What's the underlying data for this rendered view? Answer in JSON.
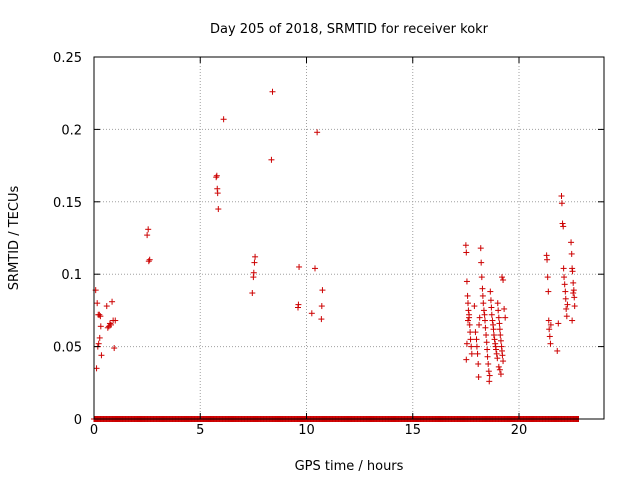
{
  "chart_data": {
    "type": "scatter",
    "title": "Day 205 of 2018, SRMTID for receiver kokr",
    "xlabel": "GPS time / hours",
    "ylabel": "SRMTID / TECUs",
    "xlim": [
      0,
      24
    ],
    "ylim": [
      0,
      0.25
    ],
    "xticks": [
      0,
      5,
      10,
      15,
      20
    ],
    "xtick_labels": [
      "0",
      "5",
      "10",
      "15",
      "20"
    ],
    "yticks": [
      0,
      0.05,
      0.1,
      0.15,
      0.2,
      0.25
    ],
    "ytick_labels": [
      "0",
      "0.05",
      "0.1",
      "0.15",
      "0.2",
      "0.25"
    ],
    "grid": true,
    "marker": "plus",
    "colors": {
      "series": "#cc0000",
      "grid": "#a0a0a0",
      "axis": "#000000"
    },
    "baseline": {
      "y": 0,
      "x_range": [
        0,
        22.8
      ],
      "note_count": 640
    },
    "series": [
      {
        "values": [
          [
            0.08,
            0.089
          ],
          [
            0.12,
            0.035
          ],
          [
            0.15,
            0.08
          ],
          [
            0.18,
            0.05
          ],
          [
            0.2,
            0.072
          ],
          [
            0.22,
            0.052
          ],
          [
            0.25,
            0.072
          ],
          [
            0.27,
            0.056
          ],
          [
            0.3,
            0.071
          ],
          [
            0.32,
            0.064
          ],
          [
            0.35,
            0.044
          ],
          [
            0.6,
            0.078
          ],
          [
            0.65,
            0.063
          ],
          [
            0.7,
            0.064
          ],
          [
            0.75,
            0.066
          ],
          [
            0.8,
            0.065
          ],
          [
            0.85,
            0.081
          ],
          [
            0.9,
            0.068
          ],
          [
            0.95,
            0.049
          ],
          [
            1.0,
            0.068
          ],
          [
            2.5,
            0.127
          ],
          [
            2.55,
            0.131
          ],
          [
            2.58,
            0.109
          ],
          [
            2.62,
            0.11
          ],
          [
            5.75,
            0.167
          ],
          [
            5.78,
            0.168
          ],
          [
            5.8,
            0.159
          ],
          [
            5.82,
            0.156
          ],
          [
            5.85,
            0.145
          ],
          [
            6.1,
            0.207
          ],
          [
            7.45,
            0.087
          ],
          [
            7.5,
            0.098
          ],
          [
            7.52,
            0.101
          ],
          [
            7.55,
            0.108
          ],
          [
            7.58,
            0.112
          ],
          [
            8.35,
            0.179
          ],
          [
            8.4,
            0.226
          ],
          [
            9.6,
            0.077
          ],
          [
            9.62,
            0.079
          ],
          [
            9.65,
            0.105
          ],
          [
            10.25,
            0.073
          ],
          [
            10.4,
            0.104
          ],
          [
            10.5,
            0.198
          ],
          [
            10.7,
            0.069
          ],
          [
            10.72,
            0.078
          ],
          [
            10.75,
            0.089
          ],
          [
            17.5,
            0.12
          ],
          [
            17.52,
            0.115
          ],
          [
            17.55,
            0.095
          ],
          [
            17.58,
            0.085
          ],
          [
            17.6,
            0.08
          ],
          [
            17.62,
            0.075
          ],
          [
            17.65,
            0.07
          ],
          [
            17.68,
            0.065
          ],
          [
            17.7,
            0.06
          ],
          [
            17.72,
            0.055
          ],
          [
            17.75,
            0.05
          ],
          [
            17.78,
            0.045
          ],
          [
            17.52,
            0.041
          ],
          [
            17.55,
            0.052
          ],
          [
            17.6,
            0.068
          ],
          [
            17.65,
            0.072
          ],
          [
            17.9,
            0.078
          ],
          [
            17.95,
            0.06
          ],
          [
            18.0,
            0.055
          ],
          [
            18.02,
            0.05
          ],
          [
            18.05,
            0.045
          ],
          [
            18.08,
            0.038
          ],
          [
            18.1,
            0.029
          ],
          [
            18.12,
            0.065
          ],
          [
            18.15,
            0.07
          ],
          [
            18.2,
            0.118
          ],
          [
            18.22,
            0.108
          ],
          [
            18.25,
            0.098
          ],
          [
            18.28,
            0.09
          ],
          [
            18.3,
            0.085
          ],
          [
            18.32,
            0.08
          ],
          [
            18.35,
            0.075
          ],
          [
            18.38,
            0.072
          ],
          [
            18.4,
            0.068
          ],
          [
            18.42,
            0.063
          ],
          [
            18.45,
            0.058
          ],
          [
            18.48,
            0.053
          ],
          [
            18.5,
            0.048
          ],
          [
            18.52,
            0.043
          ],
          [
            18.55,
            0.038
          ],
          [
            18.58,
            0.033
          ],
          [
            18.6,
            0.026
          ],
          [
            18.62,
            0.03
          ],
          [
            18.65,
            0.088
          ],
          [
            18.68,
            0.082
          ],
          [
            18.7,
            0.077
          ],
          [
            18.72,
            0.072
          ],
          [
            18.75,
            0.068
          ],
          [
            18.78,
            0.065
          ],
          [
            18.8,
            0.062
          ],
          [
            18.82,
            0.058
          ],
          [
            18.85,
            0.055
          ],
          [
            18.88,
            0.052
          ],
          [
            18.9,
            0.05
          ],
          [
            18.92,
            0.048
          ],
          [
            18.95,
            0.045
          ],
          [
            18.98,
            0.042
          ],
          [
            19.0,
            0.08
          ],
          [
            19.02,
            0.075
          ],
          [
            19.05,
            0.07
          ],
          [
            19.08,
            0.066
          ],
          [
            19.1,
            0.062
          ],
          [
            19.12,
            0.058
          ],
          [
            19.15,
            0.054
          ],
          [
            19.18,
            0.05
          ],
          [
            19.2,
            0.047
          ],
          [
            19.22,
            0.044
          ],
          [
            19.25,
            0.04
          ],
          [
            19.1,
            0.034
          ],
          [
            19.15,
            0.031
          ],
          [
            19.2,
            0.098
          ],
          [
            19.25,
            0.096
          ],
          [
            19.3,
            0.076
          ],
          [
            19.35,
            0.07
          ],
          [
            19.05,
            0.036
          ],
          [
            21.3,
            0.113
          ],
          [
            21.32,
            0.11
          ],
          [
            21.35,
            0.098
          ],
          [
            21.38,
            0.088
          ],
          [
            21.4,
            0.068
          ],
          [
            21.42,
            0.062
          ],
          [
            21.45,
            0.057
          ],
          [
            21.48,
            0.052
          ],
          [
            21.5,
            0.065
          ],
          [
            21.8,
            0.047
          ],
          [
            21.85,
            0.066
          ],
          [
            22.0,
            0.154
          ],
          [
            22.02,
            0.149
          ],
          [
            22.05,
            0.135
          ],
          [
            22.08,
            0.133
          ],
          [
            22.1,
            0.104
          ],
          [
            22.12,
            0.098
          ],
          [
            22.15,
            0.093
          ],
          [
            22.18,
            0.088
          ],
          [
            22.2,
            0.083
          ],
          [
            22.22,
            0.076
          ],
          [
            22.25,
            0.071
          ],
          [
            22.28,
            0.079
          ],
          [
            22.45,
            0.122
          ],
          [
            22.48,
            0.114
          ],
          [
            22.5,
            0.104
          ],
          [
            22.52,
            0.102
          ],
          [
            22.55,
            0.094
          ],
          [
            22.58,
            0.089
          ],
          [
            22.6,
            0.084
          ],
          [
            22.62,
            0.078
          ],
          [
            22.5,
            0.068
          ],
          [
            22.55,
            0.087
          ]
        ]
      }
    ]
  }
}
